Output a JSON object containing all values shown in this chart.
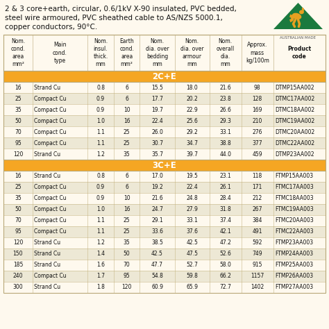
{
  "title_line1": "2 & 3 core+earth, circular, 0.6/1kV X-90 insulated, PVC bedded,",
  "title_line2": "steel wire armoured, PVC sheathed cable to AS/NZS 5000.1,",
  "title_line3": "copper conductors, 90°C.",
  "bg_color": "#fef9ee",
  "section_bg": "#f5a623",
  "row_colors": [
    "#fef9ee",
    "#ede8d5"
  ],
  "text_color": "#111111",
  "section_text": "#ffffff",
  "col_headers": [
    [
      "Nom.",
      "cond.",
      "area",
      "mm²"
    ],
    [
      "Main",
      "cond.",
      "type",
      ""
    ],
    [
      "Nom.",
      "insul.",
      "thick.",
      "mm"
    ],
    [
      "Earth",
      "cond.",
      "area",
      "mm²"
    ],
    [
      "Nom.",
      "dia. over",
      "bedding",
      "mm"
    ],
    [
      "Nom.",
      "dia. over",
      "armour",
      "mm"
    ],
    [
      "Nom.",
      "overall",
      "dia.",
      "mm"
    ],
    [
      "Approx.",
      "mass",
      "kg/100m",
      ""
    ],
    [
      "Product",
      "code",
      "",
      ""
    ]
  ],
  "col_header_bold": [
    false,
    false,
    false,
    false,
    false,
    false,
    false,
    false,
    true
  ],
  "col_widths_rel": [
    5.0,
    9.5,
    4.5,
    4.5,
    6.0,
    6.0,
    5.5,
    5.5,
    9.0
  ],
  "section_2ce": "2C+E",
  "section_3ce": "3C+E",
  "rows_2ce": [
    [
      "16",
      "Strand Cu",
      "0.8",
      "6",
      "15.5",
      "18.0",
      "21.6",
      "98",
      "DTMP15AA002"
    ],
    [
      "25",
      "Compact Cu",
      "0.9",
      "6",
      "17.7",
      "20.2",
      "23.8",
      "128",
      "DTMC17AA002"
    ],
    [
      "35",
      "Compact Cu",
      "0.9",
      "10",
      "19.7",
      "22.9",
      "26.6",
      "169",
      "DTMC18AA002"
    ],
    [
      "50",
      "Compact Cu",
      "1.0",
      "16",
      "22.4",
      "25.6",
      "29.3",
      "210",
      "DTMC19AA002"
    ],
    [
      "70",
      "Compact Cu",
      "1.1",
      "25",
      "26.0",
      "29.2",
      "33.1",
      "276",
      "DTMC20AA002"
    ],
    [
      "95",
      "Compact Cu",
      "1.1",
      "25",
      "30.7",
      "34.7",
      "38.8",
      "377",
      "DTMC22AA002"
    ],
    [
      "120",
      "Strand Cu",
      "1.2",
      "35",
      "35.7",
      "39.7",
      "44.0",
      "459",
      "DTMP23AA002"
    ]
  ],
  "rows_3ce": [
    [
      "16",
      "Strand Cu",
      "0.8",
      "6",
      "17.0",
      "19.5",
      "23.1",
      "118",
      "FTMP15AA003"
    ],
    [
      "25",
      "Compact Cu",
      "0.9",
      "6",
      "19.2",
      "22.4",
      "26.1",
      "171",
      "FTMC17AA003"
    ],
    [
      "35",
      "Compact Cu",
      "0.9",
      "10",
      "21.6",
      "24.8",
      "28.4",
      "212",
      "FTMC18AA003"
    ],
    [
      "50",
      "Compact Cu",
      "1.0",
      "16",
      "24.7",
      "27.9",
      "31.8",
      "267",
      "FTMC19AA003"
    ],
    [
      "70",
      "Compact Cu",
      "1.1",
      "25",
      "29.1",
      "33.1",
      "37.4",
      "384",
      "FTMC20AA003"
    ],
    [
      "95",
      "Compact Cu",
      "1.1",
      "25",
      "33.6",
      "37.6",
      "42.1",
      "491",
      "FTMC22AA003"
    ],
    [
      "120",
      "Strand Cu",
      "1.2",
      "35",
      "38.5",
      "42.5",
      "47.2",
      "592",
      "FTMP23AA003"
    ],
    [
      "150",
      "Strand Cu",
      "1.4",
      "50",
      "42.5",
      "47.5",
      "52.6",
      "749",
      "FTMP24AA003"
    ],
    [
      "185",
      "Strand Cu",
      "1.6",
      "70",
      "47.7",
      "52.7",
      "58.0",
      "915",
      "FTMP25AA003"
    ],
    [
      "240",
      "Compact Cu",
      "1.7",
      "95",
      "54.8",
      "59.8",
      "66.2",
      "1157",
      "FTMP26AA003"
    ],
    [
      "300",
      "Strand Cu",
      "1.8",
      "120",
      "60.9",
      "65.9",
      "72.7",
      "1402",
      "FTMP27AA003"
    ]
  ]
}
